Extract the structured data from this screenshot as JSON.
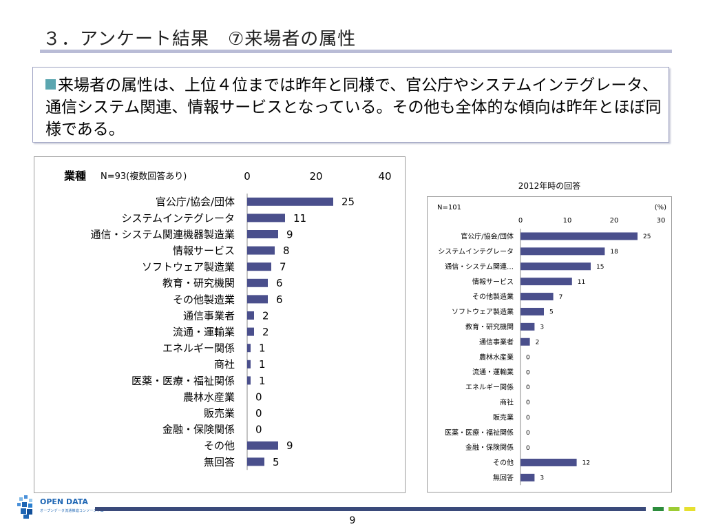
{
  "slide": {
    "title": "３．アンケート結果　⑦来場者の属性",
    "summary": "来場者の属性は、上位４位までは昨年と同様で、官公庁やシステムインテグレータ、通信システム関連、情報サービスとなっている。その他も全体的な傾向は昨年とほぼ同様である。",
    "page_number": "9",
    "logo_text": "OPEN DATA",
    "logo_subtext": "オープンデータ流通推進コンソーシアム",
    "colors": {
      "bar": "#4a4f8c",
      "title_rule": "#b9bcd6",
      "bullet": "#5ba6b0",
      "footer_bar": "#3a4a7a",
      "squares": [
        "#2c8c3c",
        "#9ccc34",
        "#e6e030"
      ]
    }
  },
  "chart_data": [
    {
      "type": "bar",
      "orientation": "horizontal",
      "title": "業種",
      "subtitle": "N=93(複数回答あり)",
      "categories": [
        "官公庁/協会/団体",
        "システムインテグレータ",
        "通信・システム関連機器製造業",
        "情報サービス",
        "ソフトウェア製造業",
        "教育・研究機関",
        "その他製造業",
        "通信事業者",
        "流通・運輸業",
        "エネルギー関係",
        "商社",
        "医薬・医療・福祉関係",
        "農林水産業",
        "販売業",
        "金融・保険関係",
        "その他",
        "無回答"
      ],
      "values": [
        25,
        11,
        9,
        8,
        7,
        6,
        6,
        2,
        2,
        1,
        1,
        1,
        0,
        0,
        0,
        9,
        5
      ],
      "xlim": [
        0,
        40
      ],
      "xticks": [
        0,
        20,
        40
      ],
      "axis_position": "top",
      "grid": false,
      "data_labels": true
    },
    {
      "type": "bar",
      "orientation": "horizontal",
      "title": "2012年時の回答",
      "subtitle": "N=101",
      "unit": "(%)",
      "categories": [
        "官公庁/協会/団体",
        "システムインテグレータ",
        "通信・システム関連…",
        "情報サービス",
        "その他製造業",
        "ソフトウェア製造業",
        "教育・研究機関",
        "通信事業者",
        "農林水産業",
        "流通・運輸業",
        "エネルギー関係",
        "商社",
        "販売業",
        "医薬・医療・福祉関係",
        "金融・保険関係",
        "その他",
        "無回答"
      ],
      "values": [
        25,
        18,
        15,
        11,
        7,
        5,
        3,
        2,
        0,
        0,
        0,
        0,
        0,
        0,
        0,
        12,
        3
      ],
      "xlim": [
        0,
        30
      ],
      "xticks": [
        0,
        10,
        20,
        30
      ],
      "axis_position": "top",
      "grid": false,
      "data_labels": true
    }
  ]
}
